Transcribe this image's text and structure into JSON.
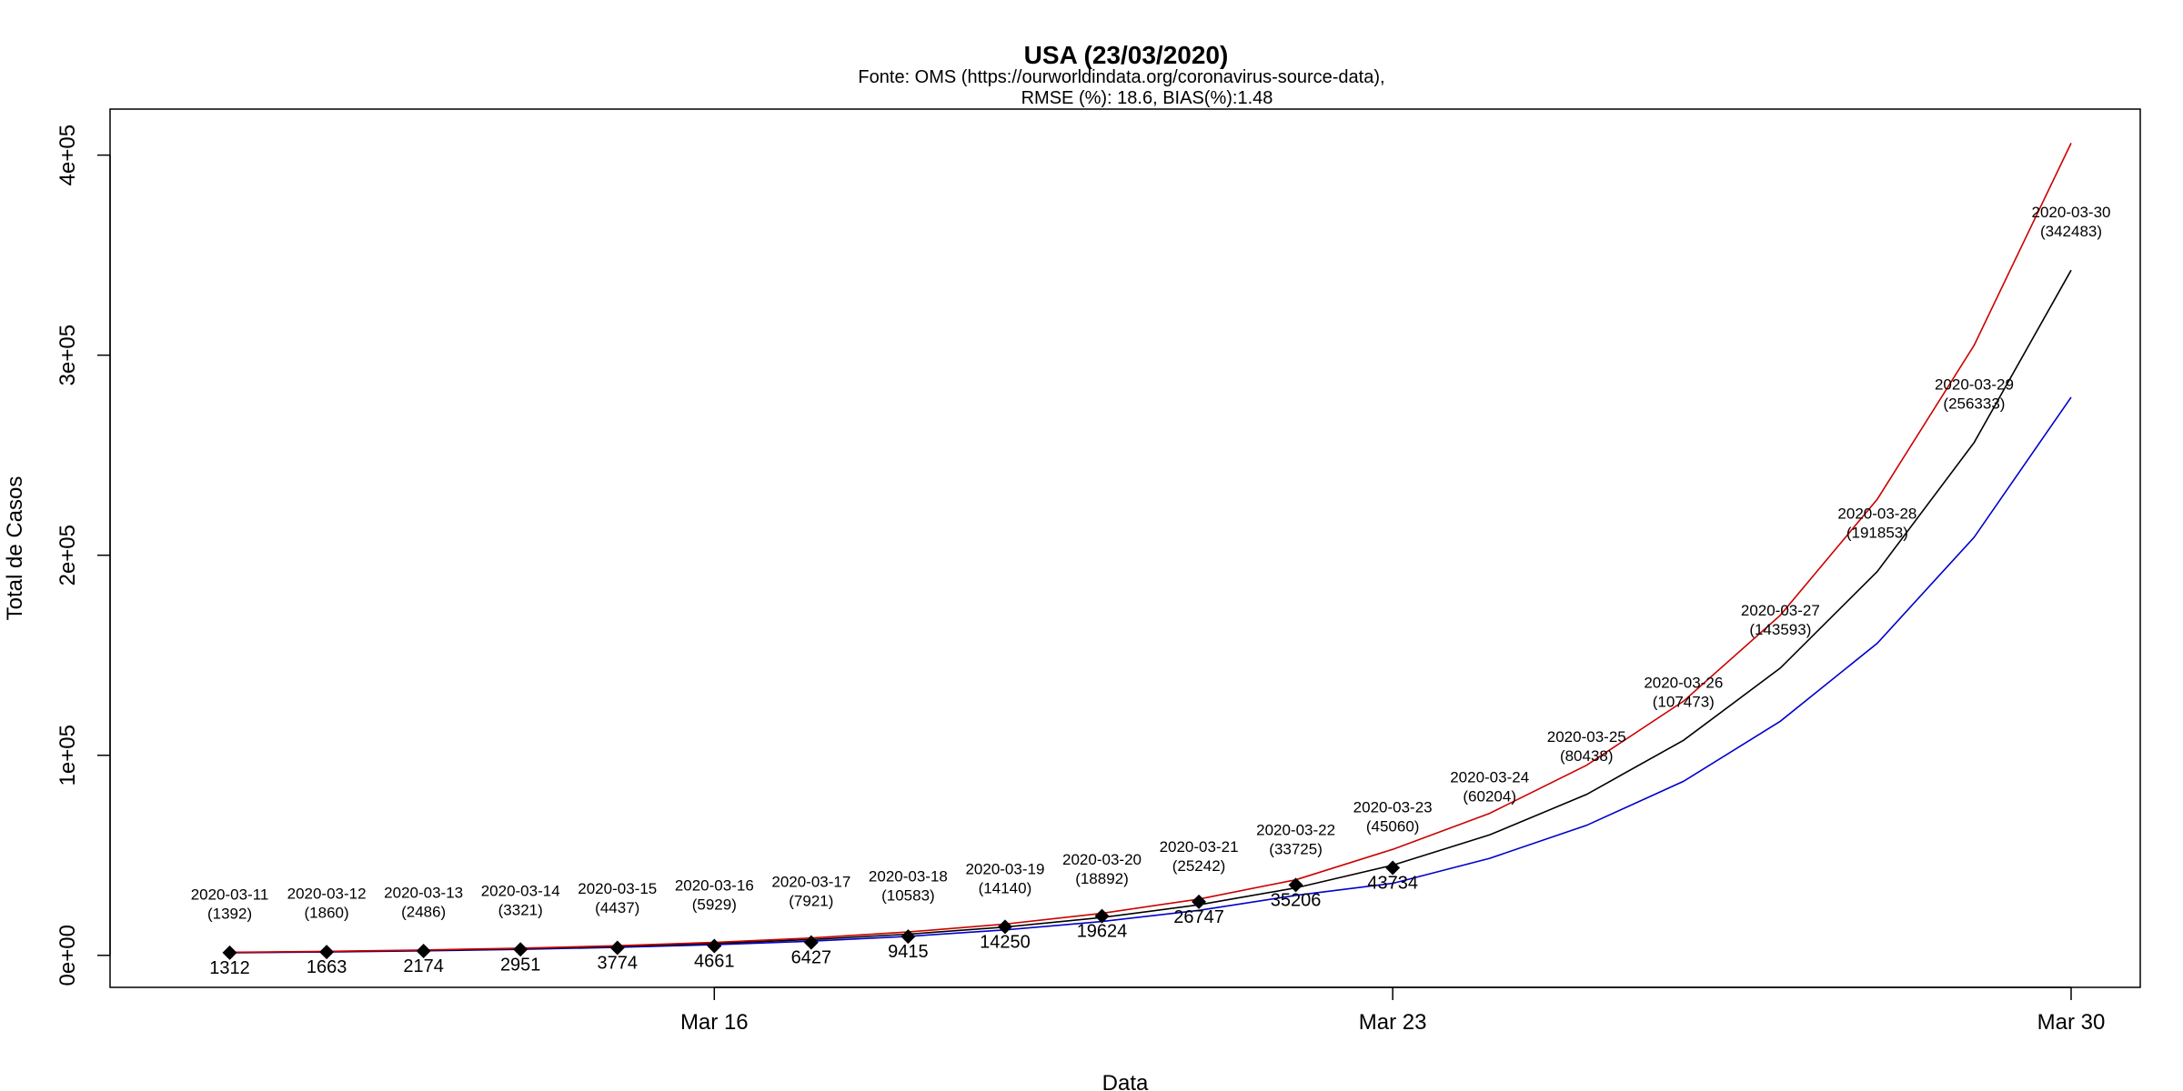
{
  "chart_data": {
    "type": "line",
    "title": "USA (23/03/2020)",
    "subtitle_lines": [
      "Fonte: OMS (https://ourworldindata.org/coronavirus-source-data),",
      "RMSE (%): 18.6, BIAS(%):1.48"
    ],
    "xlabel": "Data",
    "ylabel": "Total de Casos",
    "x_dates": [
      "2020-03-11",
      "2020-03-12",
      "2020-03-13",
      "2020-03-14",
      "2020-03-15",
      "2020-03-16",
      "2020-03-17",
      "2020-03-18",
      "2020-03-19",
      "2020-03-20",
      "2020-03-21",
      "2020-03-22",
      "2020-03-23",
      "2020-03-24",
      "2020-03-25",
      "2020-03-26",
      "2020-03-27",
      "2020-03-28",
      "2020-03-29",
      "2020-03-30"
    ],
    "xlim": [
      "2020-03-10",
      "2020-03-30"
    ],
    "ylim": [
      -16000,
      423000
    ],
    "x_ticks": [
      {
        "date": "2020-03-16",
        "label": "Mar 16"
      },
      {
        "date": "2020-03-23",
        "label": "Mar 23"
      },
      {
        "date": "2020-03-30",
        "label": "Mar 30"
      }
    ],
    "y_ticks": [
      {
        "value": 0,
        "label": "0e+00"
      },
      {
        "value": 100000,
        "label": "1e+05"
      },
      {
        "value": 200000,
        "label": "2e+05"
      },
      {
        "value": 300000,
        "label": "3e+05"
      },
      {
        "value": 400000,
        "label": "4e+05"
      }
    ],
    "grid": false,
    "series": [
      {
        "color": "#000000",
        "values": [
          1392,
          1860,
          2486,
          3321,
          4437,
          5929,
          7921,
          10583,
          14140,
          18892,
          25242,
          33725,
          45060,
          60204,
          80438,
          107473,
          143593,
          191853,
          256333,
          342483
        ]
      },
      {
        "color": "#cc0000",
        "values": [
          1480,
          1990,
          2680,
          3600,
          4830,
          6480,
          8690,
          11660,
          15640,
          20980,
          28140,
          37750,
          53000,
          71000,
          95000,
          127000,
          170000,
          228000,
          305000,
          406000
        ]
      },
      {
        "color": "#0000cc",
        "values": [
          1300,
          1700,
          2250,
          3000,
          4000,
          5300,
          7100,
          9500,
          12700,
          16900,
          22500,
          30000,
          36000,
          48500,
          65000,
          87000,
          117000,
          156000,
          209000,
          279000
        ]
      }
    ],
    "observed": {
      "dates": [
        "2020-03-11",
        "2020-03-12",
        "2020-03-13",
        "2020-03-14",
        "2020-03-15",
        "2020-03-16",
        "2020-03-17",
        "2020-03-18",
        "2020-03-19",
        "2020-03-20",
        "2020-03-21",
        "2020-03-22",
        "2020-03-23"
      ],
      "values": [
        1312,
        1663,
        2174,
        2951,
        3774,
        4661,
        6427,
        9415,
        14250,
        19624,
        26747,
        35206,
        43734
      ]
    },
    "predicted_labels": [
      {
        "date": "2020-03-11",
        "label": "2020-03-11",
        "value_label": "(1392)"
      },
      {
        "date": "2020-03-12",
        "label": "2020-03-12",
        "value_label": "(1860)"
      },
      {
        "date": "2020-03-13",
        "label": "2020-03-13",
        "value_label": "(2486)"
      },
      {
        "date": "2020-03-14",
        "label": "2020-03-14",
        "value_label": "(3321)"
      },
      {
        "date": "2020-03-15",
        "label": "2020-03-15",
        "value_label": "(4437)"
      },
      {
        "date": "2020-03-16",
        "label": "2020-03-16",
        "value_label": "(5929)"
      },
      {
        "date": "2020-03-17",
        "label": "2020-03-17",
        "value_label": "(7921)"
      },
      {
        "date": "2020-03-18",
        "label": "2020-03-18",
        "value_label": "(10583)"
      },
      {
        "date": "2020-03-19",
        "label": "2020-03-19",
        "value_label": "(14140)"
      },
      {
        "date": "2020-03-20",
        "label": "2020-03-20",
        "value_label": "(18892)"
      },
      {
        "date": "2020-03-21",
        "label": "2020-03-21",
        "value_label": "(25242)"
      },
      {
        "date": "2020-03-22",
        "label": "2020-03-22",
        "value_label": "(33725)"
      },
      {
        "date": "2020-03-23",
        "label": "2020-03-23",
        "value_label": "(45060)"
      },
      {
        "date": "2020-03-24",
        "label": "2020-03-24",
        "value_label": "(60204)"
      },
      {
        "date": "2020-03-25",
        "label": "2020-03-25",
        "value_label": "(80438)"
      },
      {
        "date": "2020-03-26",
        "label": "2020-03-26",
        "value_label": "(107473)"
      },
      {
        "date": "2020-03-27",
        "label": "2020-03-27",
        "value_label": "(143593)"
      },
      {
        "date": "2020-03-28",
        "label": "2020-03-28",
        "value_label": "(191853)"
      },
      {
        "date": "2020-03-29",
        "label": "2020-03-29",
        "value_label": "(256333)"
      },
      {
        "date": "2020-03-30",
        "label": "2020-03-30",
        "value_label": "(342483)"
      }
    ]
  }
}
